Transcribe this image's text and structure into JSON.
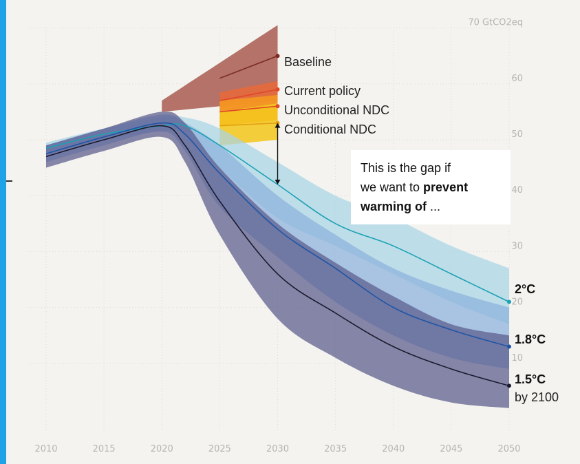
{
  "chart_data": {
    "type": "line",
    "title": "",
    "xlabel": "",
    "ylabel": "",
    "unit": "GtCO2eq",
    "xlim": [
      2010,
      2050
    ],
    "ylim": [
      -8,
      75
    ],
    "x_ticks": [
      "2010",
      "2015",
      "2020",
      "2025",
      "2030",
      "2035",
      "2040",
      "2045",
      "2050"
    ],
    "y_ticks": [
      {
        "value": 70,
        "label": "70 GtCO2eq"
      },
      {
        "value": 60,
        "label": "60"
      },
      {
        "value": 50,
        "label": "50"
      },
      {
        "value": 40,
        "label": "40"
      },
      {
        "value": 30,
        "label": "30"
      },
      {
        "value": 20,
        "label": "20"
      },
      {
        "value": 10,
        "label": "10"
      }
    ],
    "grid": true,
    "series": [
      {
        "name": "Baseline",
        "color": "#7a2a22",
        "band_color": "#a85a50",
        "x": [
          2025,
          2030
        ],
        "values": [
          61,
          65
        ],
        "band_x": [
          2020,
          2030
        ],
        "band_upper": [
          57,
          70.5
        ],
        "band_lower": [
          55,
          57
        ]
      },
      {
        "name": "Current policy",
        "color": "#e0482a",
        "band_color": "#e86a3a",
        "x": [
          2025,
          2030
        ],
        "values": [
          57,
          59
        ],
        "band_x": [
          2025,
          2030
        ],
        "band_upper": [
          58.5,
          60.5
        ],
        "band_lower": [
          55,
          56.5
        ]
      },
      {
        "name": "Unconditional NDC",
        "color": "#e0482a",
        "band_color": "#f59a1e",
        "x": [
          2025,
          2030
        ],
        "values": [
          55,
          56
        ],
        "band_x": [
          2025,
          2030
        ],
        "band_upper": [
          57,
          58
        ],
        "band_lower": [
          52.5,
          53.5
        ]
      },
      {
        "name": "Conditional NDC",
        "color": "#e2a010",
        "band_color": "#f3c51a",
        "x": [
          2025,
          2030
        ],
        "values": [
          52.5,
          53
        ],
        "band_x": [
          2025,
          2030
        ],
        "band_upper": [
          55,
          56.5
        ],
        "band_lower": [
          49,
          50
        ]
      },
      {
        "name": "2°C",
        "color": "#1ba1b3",
        "band_color": "#a8d4e6",
        "x": [
          2010,
          2015,
          2020,
          2022,
          2025,
          2030,
          2035,
          2040,
          2045,
          2050
        ],
        "values": [
          48.5,
          51,
          52.5,
          52.5,
          49,
          42,
          35,
          31,
          26,
          21
        ],
        "band_upper": [
          49.5,
          52,
          54,
          54,
          52,
          46,
          40,
          36,
          31,
          27
        ],
        "band_lower": [
          47.5,
          50,
          51.5,
          51,
          45,
          36,
          31,
          26,
          21,
          17
        ]
      },
      {
        "name": "1.8°C",
        "color": "#1f55a6",
        "band_color": "#8cb2dd",
        "x": [
          2010,
          2015,
          2020,
          2022,
          2025,
          2030,
          2035,
          2040,
          2045,
          2050
        ],
        "values": [
          47.5,
          50.5,
          53,
          51,
          44,
          34,
          27,
          20,
          16,
          13
        ],
        "band_upper": [
          49,
          52,
          54.5,
          53,
          49,
          40,
          33,
          27,
          23,
          20
        ],
        "band_lower": [
          46,
          49,
          51.5,
          48,
          38,
          29,
          21,
          15,
          11,
          9
        ]
      },
      {
        "name": "1.5°C",
        "color": "#1a1a2e",
        "band_color": "#5a5a8c",
        "x": [
          2010,
          2015,
          2020,
          2022,
          2025,
          2030,
          2035,
          2040,
          2045,
          2050
        ],
        "values": [
          47,
          50,
          52.5,
          49,
          39,
          26,
          19,
          13,
          9,
          6
        ],
        "band_upper": [
          49,
          52,
          55,
          53,
          45,
          35,
          28,
          22,
          17,
          15
        ],
        "band_lower": [
          45,
          48,
          50.5,
          46,
          33,
          18,
          11,
          6,
          3,
          2
        ]
      }
    ],
    "annotations": {
      "gap_arrow": {
        "x": 2030,
        "from": 53,
        "to": 42
      },
      "gap_text_line1": "This is the gap if",
      "gap_text_line2_a": "we want to ",
      "gap_text_line2_b": "prevent",
      "gap_text_line3_a": "warming of",
      "gap_text_line3_b": " ...",
      "by_2100": "by 2100"
    },
    "colors": {
      "background": "#f4f3ef",
      "grid": "#dcdcd6",
      "tick_text": "#b5b5b0",
      "accent_edge": "#1fa3e6"
    }
  }
}
